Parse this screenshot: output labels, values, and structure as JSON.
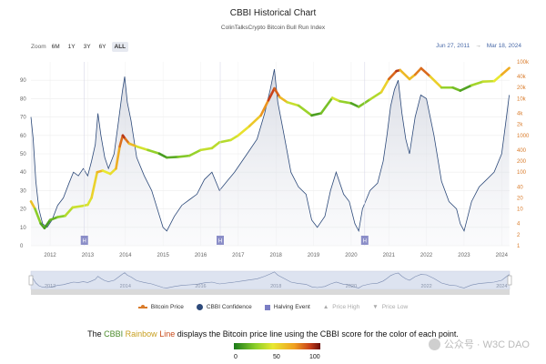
{
  "header": {
    "title": "CBBI Historical Chart",
    "subtitle": "ColinTalksCrypto Bitcoin Bull Run Index"
  },
  "zoom": {
    "label": "Zoom",
    "buttons": [
      "6M",
      "1Y",
      "3Y",
      "6Y",
      "ALL"
    ],
    "active": "ALL"
  },
  "range": {
    "from": "Jun 27, 2011",
    "arrow": "→",
    "to": "Mar 18, 2024"
  },
  "legend": {
    "items": [
      {
        "label": "Bitcoin Price",
        "color": "#d97b2a",
        "faded": false
      },
      {
        "label": "CBBI Confidence",
        "color": "#2d4a7a",
        "faded": false
      },
      {
        "label": "Halving Event",
        "color": "#7b7ec4",
        "faded": false
      },
      {
        "label": "Price High",
        "color": "#aaaaaa",
        "faded": true
      },
      {
        "label": "Price Low",
        "color": "#aaaaaa",
        "faded": true
      }
    ]
  },
  "caption": {
    "pre": "The ",
    "cbbi": "CBBI",
    "rainbow": "Rainbow",
    "line": "Line",
    "post": " displays the Bitcoin price line using the CBBI score for the color of each point."
  },
  "colorbar": {
    "labels": [
      "0",
      "50",
      "100"
    ]
  },
  "watermark": {
    "text": "公众号 · W3C DAO"
  },
  "chart_data": {
    "type": "line",
    "title": "CBBI Historical Chart",
    "left_axis": {
      "ylim": [
        0,
        100
      ],
      "ticks": [
        "0",
        "10",
        "20",
        "30",
        "40",
        "50",
        "60",
        "70",
        "80",
        "90"
      ]
    },
    "right_axis": {
      "scale": "log",
      "ticks": [
        "1",
        "2",
        "4",
        "10",
        "20",
        "40",
        "100",
        "200",
        "400",
        "1000",
        "2k",
        "4k",
        "10k",
        "20k",
        "40k",
        "100k"
      ]
    },
    "x_ticks": [
      "2012",
      "2013",
      "2014",
      "2015",
      "2016",
      "2017",
      "2018",
      "2019",
      "2020",
      "2021",
      "2022",
      "2023",
      "2024"
    ],
    "x_range": [
      2011.49,
      2024.21
    ],
    "halving_events": [
      {
        "label": "H",
        "date": 2012.91
      },
      {
        "label": "H",
        "date": 2016.52
      },
      {
        "label": "H",
        "date": 2020.36
      }
    ],
    "series": [
      {
        "name": "CBBI Confidence",
        "color": "#2d4a7a",
        "x": [
          2011.49,
          2011.55,
          2011.62,
          2011.7,
          2011.8,
          2011.92,
          2012.05,
          2012.2,
          2012.35,
          2012.5,
          2012.62,
          2012.75,
          2012.88,
          2013.0,
          2013.1,
          2013.2,
          2013.27,
          2013.35,
          2013.45,
          2013.55,
          2013.7,
          2013.8,
          2013.92,
          2013.98,
          2014.05,
          2014.15,
          2014.3,
          2014.5,
          2014.7,
          2014.85,
          2015.0,
          2015.1,
          2015.3,
          2015.5,
          2015.7,
          2015.9,
          2016.1,
          2016.3,
          2016.5,
          2016.7,
          2016.9,
          2017.1,
          2017.3,
          2017.5,
          2017.7,
          2017.85,
          2017.96,
          2018.05,
          2018.2,
          2018.4,
          2018.6,
          2018.8,
          2018.95,
          2019.1,
          2019.3,
          2019.45,
          2019.6,
          2019.8,
          2019.95,
          2020.1,
          2020.2,
          2020.3,
          2020.5,
          2020.7,
          2020.85,
          2020.95,
          2021.05,
          2021.15,
          2021.25,
          2021.35,
          2021.45,
          2021.55,
          2021.7,
          2021.85,
          2022.0,
          2022.2,
          2022.4,
          2022.6,
          2022.8,
          2022.9,
          2023.0,
          2023.2,
          2023.4,
          2023.6,
          2023.8,
          2024.0,
          2024.1,
          2024.2
        ],
        "values": [
          70,
          58,
          35,
          20,
          12,
          10,
          14,
          22,
          26,
          34,
          40,
          38,
          42,
          38,
          46,
          55,
          72,
          60,
          48,
          42,
          50,
          65,
          84,
          92,
          78,
          68,
          48,
          38,
          30,
          20,
          10,
          8,
          16,
          22,
          25,
          28,
          36,
          40,
          30,
          35,
          40,
          46,
          52,
          58,
          72,
          85,
          96,
          78,
          62,
          40,
          32,
          28,
          14,
          10,
          16,
          30,
          40,
          28,
          24,
          12,
          8,
          20,
          30,
          34,
          46,
          60,
          76,
          85,
          90,
          72,
          58,
          50,
          70,
          82,
          80,
          60,
          35,
          24,
          20,
          12,
          8,
          24,
          32,
          36,
          40,
          50,
          66,
          82
        ]
      },
      {
        "name": "Bitcoin Price",
        "color": "#d97b2a",
        "x": [
          2011.49,
          2011.6,
          2011.75,
          2011.85,
          2012.0,
          2012.2,
          2012.4,
          2012.6,
          2012.85,
          2013.0,
          2013.1,
          2013.25,
          2013.4,
          2013.6,
          2013.75,
          2013.85,
          2013.93,
          2014.0,
          2014.1,
          2014.3,
          2014.6,
          2014.9,
          2015.1,
          2015.4,
          2015.7,
          2016.0,
          2016.3,
          2016.5,
          2016.8,
          2017.0,
          2017.3,
          2017.6,
          2017.8,
          2017.96,
          2018.1,
          2018.3,
          2018.6,
          2018.95,
          2019.2,
          2019.5,
          2019.7,
          2020.0,
          2020.2,
          2020.5,
          2020.8,
          2021.0,
          2021.2,
          2021.3,
          2021.55,
          2021.7,
          2021.86,
          2022.1,
          2022.4,
          2022.7,
          2022.9,
          2023.2,
          2023.5,
          2023.8,
          2024.0,
          2024.2
        ],
        "values": [
          16,
          10,
          4,
          3,
          5,
          6,
          6.5,
          11,
          12,
          13,
          20,
          100,
          110,
          90,
          125,
          500,
          1000,
          800,
          600,
          500,
          400,
          320,
          250,
          260,
          280,
          400,
          450,
          650,
          750,
          1000,
          1800,
          3500,
          9000,
          19000,
          11000,
          8000,
          6500,
          3500,
          4000,
          10500,
          8500,
          7500,
          6000,
          9500,
          15000,
          34000,
          56000,
          60000,
          34000,
          45000,
          67000,
          40000,
          20000,
          20000,
          16500,
          23000,
          29000,
          30000,
          45000,
          68000
        ]
      }
    ]
  }
}
